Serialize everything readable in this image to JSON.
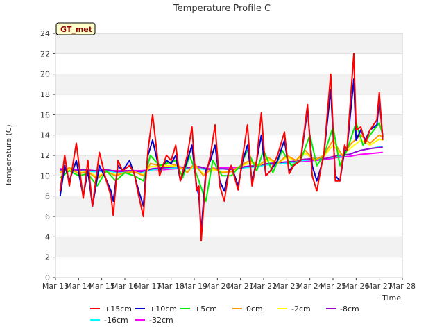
{
  "chart_data": {
    "type": "line",
    "title": "Temperature Profile C",
    "xlabel": "Time",
    "ylabel": "Temperature (C)",
    "badge": "GT_met",
    "xlim": [
      13,
      28
    ],
    "ylim": [
      0,
      24
    ],
    "x_ticks": [
      {
        "value": 13,
        "label": "Mar 13"
      },
      {
        "value": 14,
        "label": "Mar 14"
      },
      {
        "value": 15,
        "label": "Mar 15"
      },
      {
        "value": 16,
        "label": "Mar 16"
      },
      {
        "value": 17,
        "label": "Mar 17"
      },
      {
        "value": 18,
        "label": "Mar 18"
      },
      {
        "value": 19,
        "label": "Mar 19"
      },
      {
        "value": 20,
        "label": "Mar 20"
      },
      {
        "value": 21,
        "label": "Mar 21"
      },
      {
        "value": 22,
        "label": "Mar 22"
      },
      {
        "value": 23,
        "label": "Mar 23"
      },
      {
        "value": 24,
        "label": "Mar 24"
      },
      {
        "value": 25,
        "label": "Mar 25"
      },
      {
        "value": 26,
        "label": "Mar 26"
      },
      {
        "value": 27,
        "label": "Mar 27"
      },
      {
        "value": 28,
        "label": "Mar 28"
      }
    ],
    "y_ticks": [
      0,
      2,
      4,
      6,
      8,
      10,
      12,
      14,
      16,
      18,
      20,
      22,
      24
    ],
    "grid": true,
    "legend_position": "bottom",
    "series": [
      {
        "name": "+15cm",
        "color": "#ff0000",
        "x": [
          13.2,
          13.4,
          13.6,
          13.9,
          14.2,
          14.4,
          14.6,
          14.9,
          15.2,
          15.4,
          15.5,
          15.7,
          15.9,
          16.2,
          16.4,
          16.6,
          16.8,
          16.9,
          17.0,
          17.2,
          17.5,
          17.8,
          18.0,
          18.2,
          18.4,
          18.7,
          18.9,
          19.1,
          19.2,
          19.3,
          19.5,
          19.7,
          19.9,
          20.1,
          20.3,
          20.5,
          20.6,
          20.9,
          21.1,
          21.3,
          21.5,
          21.7,
          21.9,
          22.1,
          22.3,
          22.6,
          22.9,
          23.1,
          23.3,
          23.6,
          23.9,
          24.1,
          24.3,
          24.5,
          24.6,
          24.9,
          25.1,
          25.3,
          25.5,
          25.6,
          25.9,
          26.0,
          26.2,
          26.4,
          26.6,
          26.9,
          27.0,
          27.15
        ],
        "y": [
          8.5,
          12.0,
          9.0,
          13.2,
          7.8,
          11.5,
          7.0,
          12.3,
          9.5,
          8.0,
          6.1,
          11.5,
          10.5,
          11.0,
          10.3,
          8.0,
          6.0,
          9.5,
          12.5,
          16.0,
          10.0,
          12.0,
          11.5,
          13.0,
          9.5,
          12.0,
          14.8,
          8.5,
          9.0,
          3.6,
          10.0,
          12.0,
          15.0,
          9.0,
          7.5,
          10.5,
          11.0,
          8.6,
          12.0,
          15.0,
          9.0,
          11.5,
          16.2,
          10.0,
          10.5,
          12.0,
          14.3,
          10.2,
          11.0,
          11.5,
          17.0,
          10.0,
          8.5,
          11.0,
          12.0,
          20.0,
          9.5,
          9.5,
          13.0,
          12.5,
          22.0,
          14.5,
          14.8,
          13.2,
          14.5,
          15.5,
          18.2,
          13.5
        ]
      },
      {
        "name": "+10cm",
        "color": "#0000cc",
        "x": [
          13.2,
          13.4,
          13.6,
          13.9,
          14.2,
          14.4,
          14.6,
          14.9,
          15.2,
          15.4,
          15.5,
          15.7,
          15.9,
          16.2,
          16.4,
          16.6,
          16.8,
          16.9,
          17.0,
          17.2,
          17.5,
          17.8,
          18.0,
          18.2,
          18.4,
          18.7,
          18.9,
          19.1,
          19.2,
          19.3,
          19.5,
          19.7,
          19.9,
          20.1,
          20.3,
          20.5,
          20.6,
          20.9,
          21.1,
          21.3,
          21.5,
          21.7,
          21.9,
          22.1,
          22.3,
          22.6,
          22.9,
          23.1,
          23.3,
          23.6,
          23.9,
          24.1,
          24.3,
          24.5,
          24.6,
          24.9,
          25.1,
          25.3,
          25.5,
          25.6,
          25.9,
          26.0,
          26.2,
          26.4,
          26.6,
          26.9,
          27.0,
          27.15
        ],
        "y": [
          8.0,
          11.0,
          9.5,
          11.5,
          8.0,
          10.5,
          7.0,
          11.0,
          9.6,
          8.5,
          7.5,
          11.0,
          10.5,
          11.5,
          10.2,
          8.5,
          7.0,
          10.0,
          12.0,
          13.5,
          10.5,
          11.5,
          11.2,
          12.0,
          9.5,
          11.5,
          13.0,
          9.0,
          8.0,
          4.5,
          10.5,
          11.5,
          13.0,
          9.5,
          8.5,
          10.5,
          11.0,
          9.0,
          11.5,
          13.0,
          9.5,
          11.5,
          14.0,
          10.0,
          10.5,
          11.5,
          13.5,
          10.5,
          11.0,
          11.5,
          16.5,
          11.0,
          9.5,
          11.0,
          12.0,
          18.5,
          10.0,
          9.5,
          12.5,
          12.5,
          19.5,
          13.5,
          14.5,
          13.5,
          14.5,
          15.0,
          17.5,
          13.8
        ]
      },
      {
        "name": "+5cm",
        "color": "#00ee00",
        "x": [
          13.2,
          13.6,
          14.0,
          14.4,
          14.8,
          15.2,
          15.6,
          16.0,
          16.4,
          16.8,
          17.1,
          17.5,
          17.9,
          18.2,
          18.5,
          18.8,
          19.2,
          19.5,
          19.8,
          20.2,
          20.6,
          21.0,
          21.3,
          21.7,
          22.0,
          22.4,
          22.8,
          23.2,
          23.6,
          24.0,
          24.3,
          24.6,
          25.0,
          25.3,
          25.6,
          26.0,
          26.3,
          26.6,
          27.0,
          27.15
        ],
        "y": [
          9.8,
          10.5,
          10.0,
          10.2,
          9.0,
          10.5,
          9.5,
          10.3,
          10.0,
          9.5,
          12.0,
          11.0,
          11.3,
          11.5,
          9.8,
          12.0,
          9.5,
          7.5,
          11.5,
          10.0,
          10.0,
          11.0,
          12.5,
          10.5,
          12.5,
          10.3,
          12.5,
          11.0,
          11.5,
          14.0,
          11.0,
          12.0,
          14.8,
          11.0,
          12.5,
          15.2,
          13.0,
          14.0,
          15.2,
          14.0
        ]
      },
      {
        "name": "0cm",
        "color": "#ff9900",
        "x": [
          13.2,
          13.6,
          14.0,
          14.4,
          14.8,
          15.2,
          15.6,
          16.0,
          16.4,
          16.8,
          17.1,
          17.5,
          17.9,
          18.3,
          18.7,
          19.0,
          19.4,
          19.8,
          20.2,
          20.6,
          21.0,
          21.4,
          21.8,
          22.2,
          22.6,
          23.0,
          23.4,
          23.8,
          24.2,
          24.6,
          25.0,
          25.4,
          25.8,
          26.2,
          26.6,
          27.0,
          27.15
        ],
        "y": [
          10.3,
          10.8,
          10.2,
          10.4,
          9.7,
          10.4,
          10.0,
          10.3,
          10.4,
          10.0,
          11.2,
          11.0,
          11.2,
          11.0,
          10.3,
          11.2,
          10.0,
          10.8,
          10.3,
          10.4,
          11.0,
          11.5,
          11.0,
          11.8,
          11.2,
          12.0,
          11.5,
          12.5,
          11.5,
          12.0,
          13.5,
          12.0,
          13.2,
          14.0,
          13.2,
          14.0,
          13.8
        ]
      },
      {
        "name": "-2cm",
        "color": "#ffff00",
        "x": [
          13.2,
          13.6,
          14.0,
          14.4,
          14.8,
          15.2,
          15.6,
          16.0,
          16.4,
          16.8,
          17.1,
          17.5,
          17.9,
          18.3,
          18.7,
          19.0,
          19.4,
          19.8,
          20.2,
          20.6,
          21.0,
          21.4,
          21.8,
          22.2,
          22.6,
          23.0,
          23.4,
          23.8,
          24.2,
          24.6,
          25.0,
          25.4,
          25.8,
          26.2,
          26.6,
          27.0,
          27.15
        ],
        "y": [
          10.4,
          10.6,
          10.3,
          10.4,
          9.9,
          10.4,
          10.1,
          10.3,
          10.4,
          10.1,
          10.9,
          10.9,
          11.0,
          10.9,
          10.4,
          11.0,
          10.2,
          10.6,
          10.4,
          10.4,
          10.9,
          11.3,
          11.0,
          11.6,
          11.2,
          11.8,
          11.5,
          12.2,
          11.6,
          11.9,
          13.0,
          12.0,
          12.8,
          13.5,
          13.0,
          13.6,
          13.5
        ]
      },
      {
        "name": "-8cm",
        "color": "#9900cc",
        "x": [
          13.2,
          13.7,
          14.2,
          14.7,
          15.2,
          15.7,
          16.2,
          16.7,
          17.2,
          17.7,
          18.2,
          18.7,
          19.2,
          19.7,
          20.2,
          20.7,
          21.2,
          21.7,
          22.2,
          22.7,
          23.2,
          23.7,
          24.2,
          24.7,
          25.2,
          25.7,
          26.2,
          26.7,
          27.15
        ],
        "y": [
          10.6,
          10.5,
          10.6,
          10.5,
          10.6,
          10.4,
          10.5,
          10.4,
          10.7,
          10.8,
          10.9,
          10.8,
          10.9,
          10.6,
          10.7,
          10.6,
          10.9,
          11.0,
          11.2,
          11.3,
          11.4,
          11.6,
          11.7,
          11.7,
          12.0,
          12.1,
          12.5,
          12.7,
          12.8
        ]
      },
      {
        "name": "-16cm",
        "color": "#00ffff",
        "x": [
          13.2,
          13.7,
          14.2,
          14.7,
          15.2,
          15.7,
          16.2,
          16.7,
          17.2,
          17.7,
          18.2,
          18.7,
          19.2,
          19.7,
          20.2,
          20.7,
          21.2,
          21.7,
          22.2,
          22.7,
          23.2,
          23.7,
          24.2,
          24.7,
          25.2,
          25.7,
          26.2,
          26.7,
          27.15
        ],
        "y": [
          10.5,
          10.5,
          10.5,
          10.4,
          10.5,
          10.3,
          10.4,
          10.3,
          10.6,
          10.7,
          10.8,
          10.7,
          10.7,
          10.6,
          10.7,
          10.6,
          10.8,
          10.9,
          11.1,
          11.2,
          11.3,
          11.5,
          11.6,
          11.7,
          11.9,
          12.1,
          12.5,
          12.7,
          12.9
        ]
      },
      {
        "name": "-32cm",
        "color": "#ff00ff",
        "x": [
          13.2,
          13.7,
          14.2,
          14.7,
          15.2,
          15.7,
          16.2,
          16.7,
          17.2,
          17.7,
          18.2,
          18.7,
          19.2,
          19.7,
          20.2,
          20.7,
          21.2,
          21.7,
          22.2,
          22.7,
          23.2,
          23.7,
          24.2,
          24.7,
          25.2,
          25.7,
          26.2,
          26.7,
          27.15
        ],
        "y": [
          10.7,
          10.6,
          10.6,
          10.5,
          10.5,
          10.5,
          10.5,
          10.5,
          10.6,
          10.6,
          10.7,
          10.7,
          10.8,
          10.7,
          10.8,
          10.8,
          10.9,
          11.0,
          11.1,
          11.2,
          11.3,
          11.4,
          11.5,
          11.6,
          11.8,
          11.9,
          12.1,
          12.2,
          12.3
        ]
      }
    ]
  }
}
